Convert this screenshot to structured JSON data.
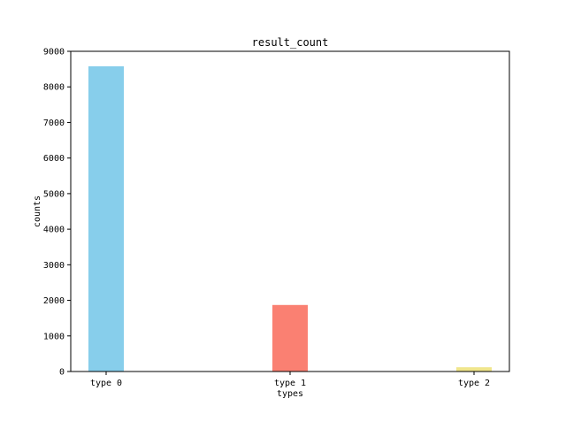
{
  "chart_data": {
    "type": "bar",
    "title": "result_count",
    "xlabel": "types",
    "ylabel": "counts",
    "categories": [
      "type 0",
      "type 1",
      "type 2"
    ],
    "values": [
      8580,
      1870,
      120
    ],
    "colors": [
      "#87CEEB",
      "#FA8072",
      "#F0E68C"
    ],
    "ylim": [
      0,
      9000
    ],
    "yticks": [
      0,
      1000,
      2000,
      3000,
      4000,
      5000,
      6000,
      7000,
      8000,
      9000
    ],
    "grid": false,
    "legend": "none"
  }
}
